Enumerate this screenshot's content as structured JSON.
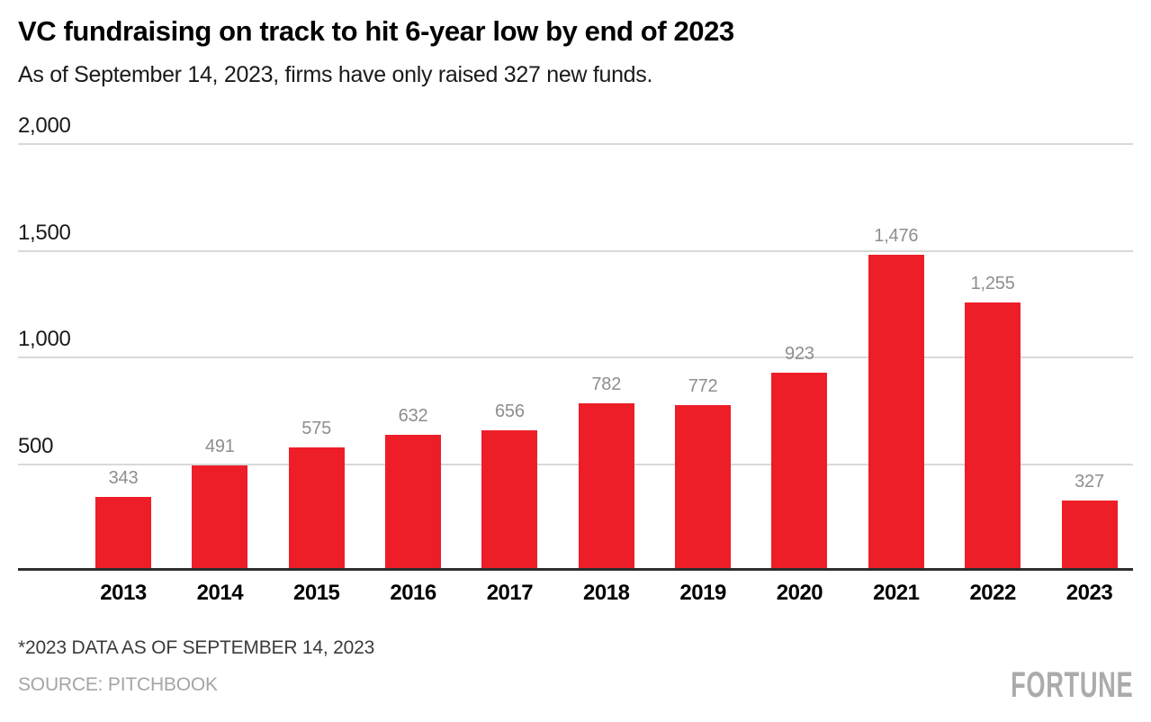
{
  "header": {
    "title": "VC fundraising on track to hit 6-year low by end of 2023",
    "subtitle": "As of September 14, 2023, firms have only raised 327 new funds."
  },
  "chart_data": {
    "type": "bar",
    "title": "VC fundraising on track to hit 6-year low by end of 2023",
    "subtitle": "As of September 14, 2023, firms have only raised 327 new funds.",
    "categories": [
      "2013",
      "2014",
      "2015",
      "2016",
      "2017",
      "2018",
      "2019",
      "2020",
      "2021",
      "2022",
      "2023"
    ],
    "values": [
      343,
      491,
      575,
      632,
      656,
      782,
      772,
      923,
      1476,
      1255,
      327
    ],
    "value_labels": [
      "343",
      "491",
      "575",
      "632",
      "656",
      "782",
      "772",
      "923",
      "1,476",
      "1,255",
      "327"
    ],
    "xlabel": "",
    "ylabel": "",
    "ylim": [
      0,
      2000
    ],
    "yticks": [
      2000,
      1500,
      1000,
      500
    ],
    "ytick_labels": [
      "2,000",
      "1,500",
      "1,000",
      "500"
    ],
    "grid": "horizontal-only",
    "legend": "none",
    "bar_color": "#ed1e28"
  },
  "footer": {
    "note": "*2023 DATA AS OF SEPTEMBER 14, 2023",
    "source": "SOURCE: PITCHBOOK",
    "logo": "FORTUNE"
  },
  "colors": {
    "bar": "#ed1e28",
    "value_label": "#8e8e8e",
    "gridline": "#d9d9d9",
    "baseline": "#2e2e2e",
    "title": "#000000",
    "footnote": "#3b3b3b",
    "source_text": "#a5a5a5",
    "logo": "#ababab"
  }
}
